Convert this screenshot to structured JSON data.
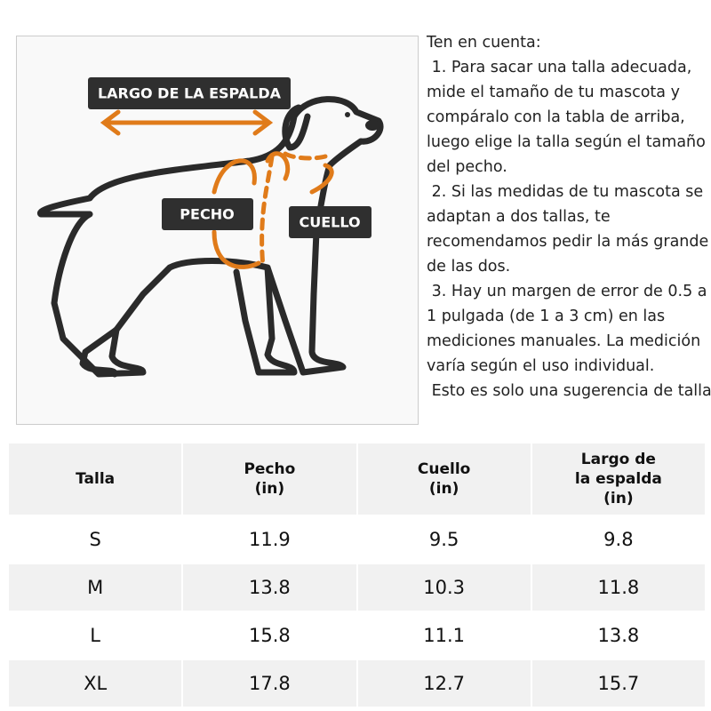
{
  "diagram": {
    "labels": [
      "LARGO DE LA ESPALDA",
      "PECHO",
      "CUELLO"
    ]
  },
  "notes": [
    "Ten en cuenta:",
    " 1. Para sacar una talla adecuada, mide el tamaño de tu mascota y compáralo con la tabla de arriba, luego elige la talla según el tamaño del pecho.",
    " 2. Si las medidas de tu mascota se adaptan a dos tallas, te recomendamos pedir la más grande de las dos.",
    " 3. Hay un margen de error de 0.5 a 1 pulgada (de 1 a 3 cm) en las mediciones manuales. La medición varía según el uso individual.",
    " Esto es solo una sugerencia de talla."
  ],
  "table": {
    "header": [
      "Talla",
      "Pecho\n(in)",
      "Cuello\n(in)",
      "Largo de\nla espalda\n(in)"
    ],
    "rows": [
      [
        "S",
        11.9,
        9.5,
        9.8
      ],
      [
        "M",
        13.8,
        10.3,
        11.8
      ],
      [
        "L",
        15.8,
        11.1,
        13.8
      ],
      [
        "XL",
        17.8,
        12.7,
        15.7
      ]
    ]
  }
}
